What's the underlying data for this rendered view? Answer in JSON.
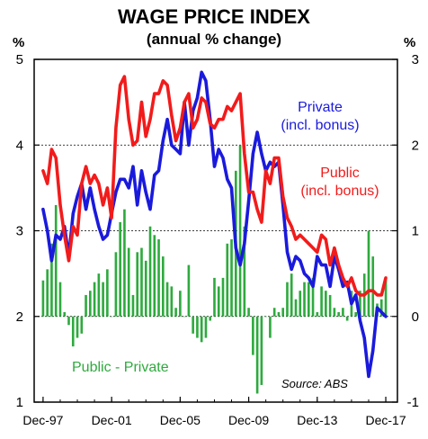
{
  "chart_data": {
    "type": "line",
    "title": "WAGE PRICE INDEX",
    "subtitle": "(annual % change)",
    "left_axis_unit": "%",
    "right_axis_unit": "%",
    "x_tick_labels": [
      "Dec-97",
      "Dec-01",
      "Dec-05",
      "Dec-09",
      "Dec-13",
      "Dec-17"
    ],
    "x_tick_positions": [
      1997.92,
      2001.92,
      2005.92,
      2009.92,
      2013.92,
      2017.92
    ],
    "xlim": [
      1997.4,
      2018.6
    ],
    "ylim_left": [
      1,
      5
    ],
    "ylim_right": [
      -1,
      3
    ],
    "left_ticks": [
      "1",
      "2",
      "3",
      "4",
      "5"
    ],
    "right_ticks": [
      "-1",
      "0",
      "1",
      "2",
      "3"
    ],
    "gridlines_left": [
      2,
      3,
      4
    ],
    "grid": true,
    "series": [
      {
        "name": "Private\n(incl. bonus)",
        "axis": "left",
        "color": "#1a1adc",
        "x": [
          1997.92,
          1998.17,
          1998.42,
          1998.67,
          1998.92,
          1999.17,
          1999.42,
          1999.67,
          1999.92,
          2000.17,
          2000.42,
          2000.67,
          2000.92,
          2001.17,
          2001.42,
          2001.67,
          2001.92,
          2002.17,
          2002.42,
          2002.67,
          2002.92,
          2003.17,
          2003.42,
          2003.67,
          2003.92,
          2004.17,
          2004.42,
          2004.67,
          2004.92,
          2005.17,
          2005.42,
          2005.67,
          2005.92,
          2006.17,
          2006.42,
          2006.67,
          2006.92,
          2007.17,
          2007.42,
          2007.67,
          2007.92,
          2008.17,
          2008.42,
          2008.67,
          2008.92,
          2009.17,
          2009.42,
          2009.67,
          2009.92,
          2010.17,
          2010.42,
          2010.67,
          2010.92,
          2011.17,
          2011.42,
          2011.67,
          2011.92,
          2012.17,
          2012.42,
          2012.67,
          2012.92,
          2013.17,
          2013.42,
          2013.67,
          2013.92,
          2014.17,
          2014.42,
          2014.67,
          2014.92,
          2015.17,
          2015.42,
          2015.67,
          2015.92,
          2016.17,
          2016.42,
          2016.67,
          2016.92,
          2017.17,
          2017.42,
          2017.67,
          2017.92
        ],
        "values": [
          3.25,
          3.0,
          2.65,
          2.95,
          2.9,
          3.05,
          2.7,
          3.2,
          3.4,
          3.55,
          3.25,
          3.5,
          3.25,
          3.05,
          2.9,
          2.95,
          3.2,
          3.45,
          3.6,
          3.6,
          3.5,
          3.75,
          3.3,
          3.7,
          3.45,
          3.25,
          3.65,
          3.7,
          4.05,
          4.3,
          4.0,
          3.95,
          3.9,
          4.5,
          4.0,
          4.4,
          4.55,
          4.85,
          4.75,
          4.3,
          3.75,
          3.95,
          3.85,
          3.6,
          3.5,
          2.8,
          2.6,
          2.85,
          3.35,
          3.9,
          4.15,
          3.9,
          3.7,
          3.8,
          3.75,
          3.8,
          3.3,
          2.75,
          2.55,
          2.7,
          2.65,
          2.5,
          2.45,
          2.35,
          2.7,
          2.6,
          2.6,
          2.35,
          2.7,
          2.55,
          2.35,
          2.4,
          2.15,
          2.25,
          1.95,
          1.75,
          1.3,
          1.6,
          2.1,
          2.05,
          2.0
        ]
      },
      {
        "name": "Public\n(incl. bonus)",
        "axis": "left",
        "color": "#f21b1b",
        "x": [
          1997.92,
          1998.17,
          1998.42,
          1998.67,
          1998.92,
          1999.17,
          1999.42,
          1999.67,
          1999.92,
          2000.17,
          2000.42,
          2000.67,
          2000.92,
          2001.17,
          2001.42,
          2001.67,
          2001.92,
          2002.17,
          2002.42,
          2002.67,
          2002.92,
          2003.17,
          2003.42,
          2003.67,
          2003.92,
          2004.17,
          2004.42,
          2004.67,
          2004.92,
          2005.17,
          2005.42,
          2005.67,
          2005.92,
          2006.17,
          2006.42,
          2006.67,
          2006.92,
          2007.17,
          2007.42,
          2007.67,
          2007.92,
          2008.17,
          2008.42,
          2008.67,
          2008.92,
          2009.17,
          2009.42,
          2009.67,
          2009.92,
          2010.17,
          2010.42,
          2010.67,
          2010.92,
          2011.17,
          2011.42,
          2011.67,
          2011.92,
          2012.17,
          2012.42,
          2012.67,
          2012.92,
          2013.17,
          2013.42,
          2013.67,
          2013.92,
          2014.17,
          2014.42,
          2014.67,
          2014.92,
          2015.17,
          2015.42,
          2015.67,
          2015.92,
          2016.17,
          2016.42,
          2016.67,
          2016.92,
          2017.17,
          2017.42,
          2017.67,
          2017.92
        ],
        "values": [
          3.7,
          3.55,
          3.95,
          3.85,
          3.3,
          2.95,
          2.65,
          3.05,
          2.95,
          3.55,
          3.75,
          3.55,
          3.65,
          3.55,
          3.3,
          3.5,
          3.15,
          4.2,
          4.7,
          4.8,
          4.3,
          4.0,
          4.05,
          4.5,
          4.1,
          4.3,
          4.6,
          4.6,
          4.75,
          4.7,
          4.35,
          4.05,
          4.2,
          4.5,
          4.6,
          4.2,
          4.3,
          4.55,
          4.5,
          4.25,
          4.2,
          4.3,
          4.3,
          4.45,
          4.4,
          4.5,
          4.6,
          3.9,
          3.45,
          3.45,
          3.25,
          3.1,
          3.7,
          3.55,
          3.85,
          3.85,
          3.4,
          3.15,
          3.05,
          2.9,
          2.95,
          2.9,
          2.85,
          2.8,
          2.75,
          2.95,
          2.9,
          2.6,
          2.8,
          2.6,
          2.45,
          2.35,
          2.45,
          2.3,
          2.25,
          2.25,
          2.3,
          2.3,
          2.25,
          2.25,
          2.45
        ]
      },
      {
        "name": "Public - Private",
        "axis": "right",
        "type": "bar",
        "color": "#2eaa3e",
        "x": [
          1997.92,
          1998.17,
          1998.42,
          1998.67,
          1998.92,
          1999.17,
          1999.42,
          1999.67,
          1999.92,
          2000.17,
          2000.42,
          2000.67,
          2000.92,
          2001.17,
          2001.42,
          2001.67,
          2001.92,
          2002.17,
          2002.42,
          2002.67,
          2002.92,
          2003.17,
          2003.42,
          2003.67,
          2003.92,
          2004.17,
          2004.42,
          2004.67,
          2004.92,
          2005.17,
          2005.42,
          2005.67,
          2005.92,
          2006.17,
          2006.42,
          2006.67,
          2006.92,
          2007.17,
          2007.42,
          2007.67,
          2007.92,
          2008.17,
          2008.42,
          2008.67,
          2008.92,
          2009.17,
          2009.42,
          2009.67,
          2009.92,
          2010.17,
          2010.42,
          2010.67,
          2010.92,
          2011.17,
          2011.42,
          2011.67,
          2011.92,
          2012.17,
          2012.42,
          2012.67,
          2012.92,
          2013.17,
          2013.42,
          2013.67,
          2013.92,
          2014.17,
          2014.42,
          2014.67,
          2014.92,
          2015.17,
          2015.42,
          2015.67,
          2015.92,
          2016.17,
          2016.42,
          2016.67,
          2016.92,
          2017.17,
          2017.42,
          2017.67,
          2017.92
        ],
        "values": [
          0.42,
          0.55,
          0.85,
          1.3,
          0.4,
          0.05,
          -0.1,
          -0.35,
          -0.25,
          -0.2,
          0.25,
          0.3,
          0.4,
          0.5,
          0.4,
          0.55,
          0.0,
          0.75,
          1.1,
          1.25,
          0.8,
          0.25,
          0.75,
          0.8,
          0.65,
          1.05,
          0.95,
          0.9,
          0.7,
          0.4,
          0.35,
          0.1,
          0.3,
          0.0,
          0.6,
          -0.2,
          -0.25,
          -0.3,
          -0.25,
          -0.05,
          0.45,
          0.35,
          0.45,
          0.85,
          0.9,
          1.7,
          2.0,
          1.05,
          0.1,
          -0.45,
          -0.9,
          -0.8,
          0.0,
          -0.25,
          0.1,
          0.05,
          0.1,
          0.4,
          0.5,
          0.2,
          0.3,
          0.4,
          0.4,
          0.45,
          0.05,
          0.35,
          0.3,
          0.25,
          0.1,
          0.05,
          0.1,
          -0.05,
          0.3,
          0.05,
          0.3,
          0.5,
          1.0,
          0.7,
          0.15,
          0.2,
          0.45
        ]
      }
    ],
    "annotations": [
      {
        "text": "Private",
        "color": "#1a1adc"
      },
      {
        "text": "(incl. bonus)",
        "color": "#1a1adc"
      },
      {
        "text": "Public",
        "color": "#f21b1b"
      },
      {
        "text": "(incl. bonus)",
        "color": "#f21b1b"
      },
      {
        "text": "Public - Private",
        "color": "#2eaa3e"
      },
      {
        "text": "Source: ABS",
        "color": "#000000"
      }
    ]
  }
}
